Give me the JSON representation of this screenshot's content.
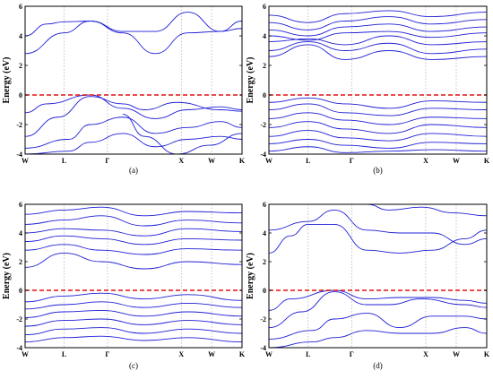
{
  "chart_data": [
    {
      "type": "line",
      "panel_label": "(a)",
      "ylabel": "Energy (eV)",
      "ylim": [
        -4,
        6
      ],
      "yticks": [
        "-4",
        "-2",
        "0",
        "2",
        "4",
        "6"
      ],
      "k_labels": [
        "W",
        "L",
        "Γ",
        "X",
        "W",
        "K"
      ],
      "fermi_level": 0,
      "colors": {
        "bands": "#1f1fd6",
        "fermi": "#e01010",
        "grid": "#9a9a9a"
      },
      "bands": [
        {
          "x": [
            0,
            0.18,
            0.3,
            0.45,
            0.6,
            0.75,
            0.9,
            1
          ],
          "y": [
            2.8,
            4.2,
            5.0,
            4.2,
            2.8,
            4.2,
            4.3,
            4.5
          ]
        },
        {
          "x": [
            0,
            0.1,
            0.18,
            0.3,
            0.45,
            0.6,
            0.75,
            0.9,
            1
          ],
          "y": [
            4.0,
            4.8,
            4.95,
            5.0,
            4.3,
            4.3,
            5.6,
            4.3,
            5.0
          ]
        },
        {
          "x": [
            0,
            0.1,
            0.3,
            0.45,
            0.6,
            0.75,
            0.9,
            1
          ],
          "y": [
            -1.2,
            -0.6,
            0,
            -0.9,
            -1.6,
            -1.0,
            -0.8,
            -1.0
          ]
        },
        {
          "x": [
            0,
            0.15,
            0.3,
            0.45,
            0.55,
            0.7,
            0.9,
            1
          ],
          "y": [
            -2.8,
            -1.5,
            -0.1,
            -0.6,
            -1.0,
            -0.5,
            -1.0,
            -1.1
          ]
        },
        {
          "x": [
            0,
            0.2,
            0.3,
            0.45,
            0.6,
            0.75,
            0.9,
            1
          ],
          "y": [
            -3.6,
            -3.0,
            -2.0,
            -1.5,
            -2.6,
            -2.2,
            -1.8,
            -2.2
          ]
        },
        {
          "x": [
            0,
            0.2,
            0.3,
            0.45,
            0.6,
            0.75,
            0.9,
            1
          ],
          "y": [
            -4,
            -3.8,
            -3.2,
            -2.6,
            -3.5,
            -3.0,
            -2.8,
            -3.0
          ]
        },
        {
          "x": [
            0.45,
            0.55,
            0.7,
            0.85,
            1
          ],
          "y": [
            -1.3,
            -2.8,
            -4,
            -3.4,
            -2.6
          ]
        }
      ]
    },
    {
      "type": "line",
      "panel_label": "(b)",
      "ylabel": "Energy (eV)",
      "ylim": [
        -4,
        6
      ],
      "yticks": [
        "-4",
        "-2",
        "0",
        "2",
        "4",
        "6"
      ],
      "k_labels": [
        "W",
        "L",
        "Γ",
        "X",
        "W",
        "K"
      ],
      "fermi_level": 0,
      "colors": {
        "bands": "#1f1fd6",
        "fermi": "#e01010",
        "grid": "#9a9a9a"
      },
      "bands": [
        {
          "x": [
            0,
            0.18,
            0.35,
            0.55,
            0.75,
            1
          ],
          "y": [
            2.6,
            3.4,
            2.4,
            3.0,
            2.4,
            2.6
          ]
        },
        {
          "x": [
            0,
            0.18,
            0.35,
            0.55,
            0.75,
            1
          ],
          "y": [
            3.0,
            3.6,
            3.0,
            3.5,
            2.8,
            3.1
          ]
        },
        {
          "x": [
            0,
            0.18,
            0.35,
            0.55,
            0.75,
            1
          ],
          "y": [
            3.6,
            3.8,
            3.4,
            4.0,
            3.4,
            3.6
          ]
        },
        {
          "x": [
            0,
            0.18,
            0.35,
            0.55,
            0.75,
            1
          ],
          "y": [
            4.0,
            3.7,
            4.2,
            4.3,
            3.9,
            4.2
          ]
        },
        {
          "x": [
            0,
            0.18,
            0.35,
            0.55,
            0.75,
            1
          ],
          "y": [
            4.4,
            4.0,
            4.6,
            4.8,
            4.3,
            4.6
          ]
        },
        {
          "x": [
            0,
            0.18,
            0.35,
            0.55,
            0.75,
            1
          ],
          "y": [
            4.9,
            4.4,
            5.0,
            5.3,
            4.8,
            5.1
          ]
        },
        {
          "x": [
            0,
            0.18,
            0.35,
            0.55,
            0.75,
            1
          ],
          "y": [
            5.4,
            4.9,
            5.5,
            5.7,
            5.3,
            5.6
          ]
        },
        {
          "x": [
            0,
            0.18,
            0.35,
            0.55,
            0.75,
            1
          ],
          "y": [
            -0.5,
            -0.2,
            -0.6,
            -0.9,
            -0.4,
            -0.5
          ]
        },
        {
          "x": [
            0,
            0.18,
            0.35,
            0.55,
            0.75,
            1
          ],
          "y": [
            -1.0,
            -0.6,
            -1.2,
            -1.4,
            -0.9,
            -1.0
          ]
        },
        {
          "x": [
            0,
            0.18,
            0.35,
            0.55,
            0.75,
            1
          ],
          "y": [
            -1.6,
            -1.2,
            -1.7,
            -2.0,
            -1.5,
            -1.6
          ]
        },
        {
          "x": [
            0,
            0.18,
            0.35,
            0.55,
            0.75,
            1
          ],
          "y": [
            -2.2,
            -1.8,
            -2.3,
            -2.6,
            -2.0,
            -2.2
          ]
        },
        {
          "x": [
            0,
            0.18,
            0.35,
            0.55,
            0.75,
            1
          ],
          "y": [
            -2.8,
            -2.4,
            -2.9,
            -3.1,
            -2.6,
            -2.8
          ]
        },
        {
          "x": [
            0,
            0.18,
            0.35,
            0.55,
            0.75,
            1
          ],
          "y": [
            -3.3,
            -3.0,
            -3.4,
            -3.6,
            -3.2,
            -3.3
          ]
        },
        {
          "x": [
            0,
            0.18,
            0.35,
            0.55,
            0.75,
            1
          ],
          "y": [
            -3.8,
            -3.5,
            -3.9,
            -3.8,
            -3.7,
            -3.8
          ]
        }
      ]
    },
    {
      "type": "line",
      "panel_label": "(c)",
      "ylabel": "Energy (eV)",
      "ylim": [
        -4,
        6
      ],
      "yticks": [
        "-4",
        "-2",
        "0",
        "2",
        "4",
        "6"
      ],
      "k_labels": [
        "W",
        "L",
        "Γ",
        "X",
        "W",
        "K"
      ],
      "fermi_level": 0,
      "colors": {
        "bands": "#1f1fd6",
        "fermi": "#e01010",
        "grid": "#9a9a9a"
      },
      "bands": [
        {
          "x": [
            0,
            0.18,
            0.35,
            0.55,
            0.75,
            1
          ],
          "y": [
            1.6,
            2.6,
            2.0,
            1.5,
            2.0,
            1.8
          ]
        },
        {
          "x": [
            0,
            0.18,
            0.35,
            0.55,
            0.75,
            1
          ],
          "y": [
            2.8,
            3.2,
            2.8,
            2.5,
            2.9,
            2.8
          ]
        },
        {
          "x": [
            0,
            0.18,
            0.35,
            0.55,
            0.75,
            1
          ],
          "y": [
            3.4,
            3.8,
            3.6,
            3.2,
            3.6,
            3.5
          ]
        },
        {
          "x": [
            0,
            0.18,
            0.35,
            0.55,
            0.75,
            1
          ],
          "y": [
            4.0,
            4.3,
            4.2,
            3.8,
            4.3,
            4.1
          ]
        },
        {
          "x": [
            0,
            0.18,
            0.35,
            0.55,
            0.75,
            1
          ],
          "y": [
            4.6,
            4.9,
            5.2,
            4.5,
            4.9,
            4.7
          ]
        },
        {
          "x": [
            0,
            0.18,
            0.35,
            0.55,
            0.75,
            1
          ],
          "y": [
            5.3,
            5.6,
            5.8,
            5.2,
            5.5,
            5.4
          ]
        },
        {
          "x": [
            0,
            0.18,
            0.35,
            0.55,
            0.75,
            1
          ],
          "y": [
            -0.8,
            -0.4,
            -0.2,
            -0.6,
            -0.3,
            -0.7
          ]
        },
        {
          "x": [
            0,
            0.18,
            0.35,
            0.55,
            0.75,
            1
          ],
          "y": [
            -1.3,
            -1.0,
            -0.8,
            -1.2,
            -0.9,
            -1.2
          ]
        },
        {
          "x": [
            0,
            0.18,
            0.35,
            0.55,
            0.75,
            1
          ],
          "y": [
            -1.9,
            -1.5,
            -1.4,
            -1.8,
            -1.5,
            -1.8
          ]
        },
        {
          "x": [
            0,
            0.18,
            0.35,
            0.55,
            0.75,
            1
          ],
          "y": [
            -2.5,
            -2.1,
            -2.0,
            -2.4,
            -2.1,
            -2.4
          ]
        },
        {
          "x": [
            0,
            0.18,
            0.35,
            0.55,
            0.75,
            1
          ],
          "y": [
            -3.1,
            -2.7,
            -2.6,
            -3.0,
            -2.7,
            -3.0
          ]
        },
        {
          "x": [
            0,
            0.18,
            0.35,
            0.55,
            0.75,
            1
          ],
          "y": [
            -3.6,
            -3.3,
            -3.2,
            -3.5,
            -3.3,
            -3.6
          ]
        }
      ]
    },
    {
      "type": "line",
      "panel_label": "(d)",
      "ylabel": "Energy (eV)",
      "ylim": [
        -4,
        6
      ],
      "yticks": [
        "-4",
        "-2",
        "0",
        "2",
        "4",
        "6"
      ],
      "k_labels": [
        "W",
        "L",
        "Γ",
        "X",
        "W",
        "K"
      ],
      "fermi_level": 0,
      "colors": {
        "bands": "#1f1fd6",
        "fermi": "#e01010",
        "grid": "#9a9a9a"
      },
      "bands": [
        {
          "x": [
            0,
            0.1,
            0.18,
            0.3,
            0.45,
            0.6,
            0.75,
            0.9,
            1
          ],
          "y": [
            2.6,
            3.8,
            4.6,
            4.6,
            2.8,
            2.6,
            2.8,
            3.6,
            4.2
          ]
        },
        {
          "x": [
            0,
            0.18,
            0.3,
            0.45,
            0.6,
            0.75,
            0.9,
            1
          ],
          "y": [
            4.2,
            4.8,
            5.6,
            4.2,
            4.0,
            4.0,
            3.2,
            3.6
          ]
        },
        {
          "x": [
            0.45,
            0.55,
            0.7,
            0.85,
            1
          ],
          "y": [
            6.0,
            5.6,
            5.8,
            5.4,
            5.2
          ]
        },
        {
          "x": [
            0,
            0.1,
            0.3,
            0.45,
            0.6,
            0.75,
            0.9,
            1
          ],
          "y": [
            -1.4,
            -0.6,
            0,
            -0.6,
            -0.5,
            -0.5,
            -0.7,
            -0.9
          ]
        },
        {
          "x": [
            0,
            0.15,
            0.3,
            0.45,
            0.55,
            0.7,
            0.9,
            1
          ],
          "y": [
            -2.6,
            -1.5,
            -0.1,
            -1.0,
            -1.0,
            -0.6,
            -1.0,
            -1.2
          ]
        },
        {
          "x": [
            0,
            0.2,
            0.3,
            0.45,
            0.6,
            0.75,
            0.9,
            1
          ],
          "y": [
            -3.4,
            -2.8,
            -2.0,
            -1.6,
            -2.6,
            -1.8,
            -1.8,
            -2.0
          ]
        },
        {
          "x": [
            0,
            0.2,
            0.3,
            0.45,
            0.6,
            0.75,
            0.9,
            1
          ],
          "y": [
            -4,
            -3.6,
            -3.3,
            -2.8,
            -3.0,
            -3.0,
            -2.6,
            -3.0
          ]
        }
      ]
    }
  ]
}
